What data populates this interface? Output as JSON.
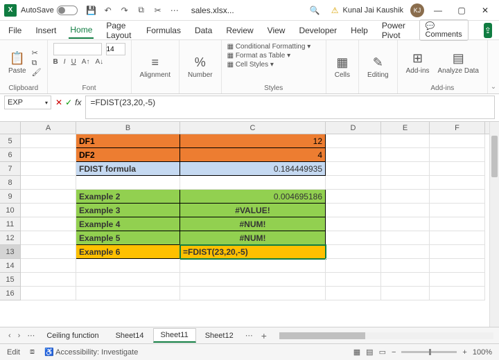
{
  "titlebar": {
    "autosave_label": "AutoSave",
    "autosave_state": "Off",
    "filename": "sales.xlsx...",
    "username": "Kunal Jai Kaushik",
    "user_initials": "KJ"
  },
  "menu": {
    "items": [
      "File",
      "Insert",
      "Home",
      "Page Layout",
      "Formulas",
      "Data",
      "Review",
      "View",
      "Developer",
      "Help",
      "Power Pivot"
    ],
    "active_index": 2,
    "comments_label": "Comments"
  },
  "ribbon": {
    "clipboard": {
      "paste": "Paste",
      "label": "Clipboard"
    },
    "font": {
      "family_value": "",
      "size_value": "14",
      "label": "Font"
    },
    "alignment": {
      "btn": "Alignment"
    },
    "number": {
      "btn": "Number",
      "pct": "%"
    },
    "styles": {
      "cond": "Conditional Formatting",
      "table": "Format as Table",
      "cell": "Cell Styles",
      "label": "Styles"
    },
    "cells": {
      "btn": "Cells"
    },
    "editing": {
      "btn": "Editing"
    },
    "addins": {
      "btn": "Add-ins",
      "analyze": "Analyze Data",
      "label": "Add-ins"
    }
  },
  "formula_bar": {
    "namebox": "EXP",
    "formula": "=FDIST(23,20,-5)"
  },
  "grid": {
    "col_widths": {
      "A": 80,
      "B": 150,
      "C": 210,
      "D": 80,
      "E": 70,
      "F": 80
    },
    "columns": [
      "A",
      "B",
      "C",
      "D",
      "E",
      "F"
    ],
    "rows": [
      "5",
      "6",
      "7",
      "8",
      "9",
      "10",
      "11",
      "12",
      "13",
      "14",
      "15",
      "16"
    ],
    "active_row": "13",
    "data": {
      "r5": {
        "b": "DF1",
        "c": "12",
        "bcls": "orange bold",
        "ccls": "orange r"
      },
      "r6": {
        "b": "DF2",
        "c": "4",
        "bcls": "orange bold",
        "ccls": "orange r"
      },
      "r7": {
        "b": "FDIST formula",
        "c": "0.184449935",
        "bcls": "blue bold",
        "ccls": "blue r"
      },
      "r9": {
        "b": "Example 2",
        "c": "0.004695186",
        "bcls": "green bold",
        "ccls": "green r"
      },
      "r10": {
        "b": "Example 3",
        "c": "#VALUE!",
        "bcls": "green bold",
        "ccls": "green c bold"
      },
      "r11": {
        "b": "Example 4",
        "c": "#NUM!",
        "bcls": "green bold",
        "ccls": "green c bold"
      },
      "r12": {
        "b": "Example 5",
        "c": "#NUM!",
        "bcls": "green bold",
        "ccls": "green c bold"
      },
      "r13": {
        "b": "Example 6",
        "c": "=FDIST(23,20,-5)",
        "bcls": "yellow bold",
        "ccls": "yellow bold active"
      }
    }
  },
  "tabs": {
    "items": [
      "Ceiling function",
      "Sheet14",
      "Sheet11",
      "Sheet12"
    ],
    "active_index": 2
  },
  "status": {
    "mode": "Edit",
    "accessibility": "Accessibility: Investigate",
    "zoom": "100%"
  }
}
